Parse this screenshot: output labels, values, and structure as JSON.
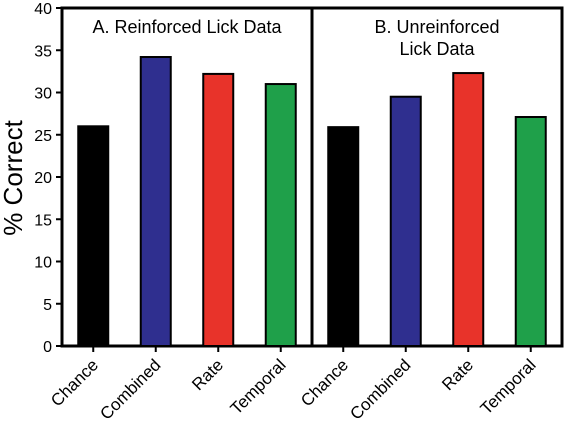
{
  "chart_data": {
    "type": "bar",
    "ylabel": "% Correct",
    "ylim": [
      0,
      40
    ],
    "yticks": [
      0,
      5,
      10,
      15,
      20,
      25,
      30,
      35,
      40
    ],
    "grid": false,
    "panels": [
      {
        "title_lines": [
          "A. Reinforced Lick Data"
        ],
        "categories": [
          "Chance",
          "Combined",
          "Rate",
          "Temporal"
        ],
        "values": [
          26,
          34.2,
          32.2,
          31.0
        ],
        "colors": [
          "#000000",
          "#2f2f8f",
          "#e8332a",
          "#1fa04a"
        ]
      },
      {
        "title_lines": [
          "B. Unreinforced",
          "Lick Data"
        ],
        "categories": [
          "Chance",
          "Combined",
          "Rate",
          "Temporal"
        ],
        "values": [
          25.9,
          29.5,
          32.3,
          27.1
        ],
        "colors": [
          "#000000",
          "#2f2f8f",
          "#e8332a",
          "#1fa04a"
        ]
      }
    ]
  }
}
